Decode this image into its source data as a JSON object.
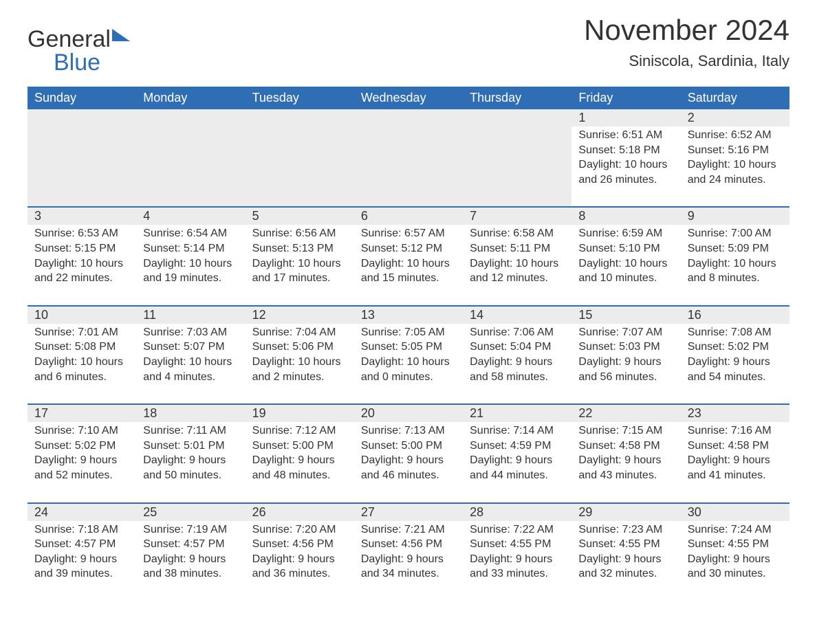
{
  "logo": {
    "general": "General",
    "blue": "Blue"
  },
  "title": "November 2024",
  "location": "Siniscola, Sardinia, Italy",
  "colors": {
    "header_bg": "#2f6eb5",
    "header_text": "#ffffff",
    "daynum_bg": "#ececec",
    "row_border": "#2f6eb5",
    "body_text": "#333333",
    "background": "#ffffff"
  },
  "typography": {
    "title_fontsize": 42,
    "location_fontsize": 22,
    "dayheader_fontsize": 18,
    "daynum_fontsize": 18,
    "detail_fontsize": 16
  },
  "layout": {
    "columns": 7,
    "week_rows": 5
  },
  "day_headers": [
    "Sunday",
    "Monday",
    "Tuesday",
    "Wednesday",
    "Thursday",
    "Friday",
    "Saturday"
  ],
  "labels": {
    "sunrise": "Sunrise:",
    "sunset": "Sunset:",
    "daylight": "Daylight:"
  },
  "weeks": [
    [
      null,
      null,
      null,
      null,
      null,
      {
        "n": "1",
        "sunrise": "6:51 AM",
        "sunset": "5:18 PM",
        "daylight": "10 hours and 26 minutes."
      },
      {
        "n": "2",
        "sunrise": "6:52 AM",
        "sunset": "5:16 PM",
        "daylight": "10 hours and 24 minutes."
      }
    ],
    [
      {
        "n": "3",
        "sunrise": "6:53 AM",
        "sunset": "5:15 PM",
        "daylight": "10 hours and 22 minutes."
      },
      {
        "n": "4",
        "sunrise": "6:54 AM",
        "sunset": "5:14 PM",
        "daylight": "10 hours and 19 minutes."
      },
      {
        "n": "5",
        "sunrise": "6:56 AM",
        "sunset": "5:13 PM",
        "daylight": "10 hours and 17 minutes."
      },
      {
        "n": "6",
        "sunrise": "6:57 AM",
        "sunset": "5:12 PM",
        "daylight": "10 hours and 15 minutes."
      },
      {
        "n": "7",
        "sunrise": "6:58 AM",
        "sunset": "5:11 PM",
        "daylight": "10 hours and 12 minutes."
      },
      {
        "n": "8",
        "sunrise": "6:59 AM",
        "sunset": "5:10 PM",
        "daylight": "10 hours and 10 minutes."
      },
      {
        "n": "9",
        "sunrise": "7:00 AM",
        "sunset": "5:09 PM",
        "daylight": "10 hours and 8 minutes."
      }
    ],
    [
      {
        "n": "10",
        "sunrise": "7:01 AM",
        "sunset": "5:08 PM",
        "daylight": "10 hours and 6 minutes."
      },
      {
        "n": "11",
        "sunrise": "7:03 AM",
        "sunset": "5:07 PM",
        "daylight": "10 hours and 4 minutes."
      },
      {
        "n": "12",
        "sunrise": "7:04 AM",
        "sunset": "5:06 PM",
        "daylight": "10 hours and 2 minutes."
      },
      {
        "n": "13",
        "sunrise": "7:05 AM",
        "sunset": "5:05 PM",
        "daylight": "10 hours and 0 minutes."
      },
      {
        "n": "14",
        "sunrise": "7:06 AM",
        "sunset": "5:04 PM",
        "daylight": "9 hours and 58 minutes."
      },
      {
        "n": "15",
        "sunrise": "7:07 AM",
        "sunset": "5:03 PM",
        "daylight": "9 hours and 56 minutes."
      },
      {
        "n": "16",
        "sunrise": "7:08 AM",
        "sunset": "5:02 PM",
        "daylight": "9 hours and 54 minutes."
      }
    ],
    [
      {
        "n": "17",
        "sunrise": "7:10 AM",
        "sunset": "5:02 PM",
        "daylight": "9 hours and 52 minutes."
      },
      {
        "n": "18",
        "sunrise": "7:11 AM",
        "sunset": "5:01 PM",
        "daylight": "9 hours and 50 minutes."
      },
      {
        "n": "19",
        "sunrise": "7:12 AM",
        "sunset": "5:00 PM",
        "daylight": "9 hours and 48 minutes."
      },
      {
        "n": "20",
        "sunrise": "7:13 AM",
        "sunset": "5:00 PM",
        "daylight": "9 hours and 46 minutes."
      },
      {
        "n": "21",
        "sunrise": "7:14 AM",
        "sunset": "4:59 PM",
        "daylight": "9 hours and 44 minutes."
      },
      {
        "n": "22",
        "sunrise": "7:15 AM",
        "sunset": "4:58 PM",
        "daylight": "9 hours and 43 minutes."
      },
      {
        "n": "23",
        "sunrise": "7:16 AM",
        "sunset": "4:58 PM",
        "daylight": "9 hours and 41 minutes."
      }
    ],
    [
      {
        "n": "24",
        "sunrise": "7:18 AM",
        "sunset": "4:57 PM",
        "daylight": "9 hours and 39 minutes."
      },
      {
        "n": "25",
        "sunrise": "7:19 AM",
        "sunset": "4:57 PM",
        "daylight": "9 hours and 38 minutes."
      },
      {
        "n": "26",
        "sunrise": "7:20 AM",
        "sunset": "4:56 PM",
        "daylight": "9 hours and 36 minutes."
      },
      {
        "n": "27",
        "sunrise": "7:21 AM",
        "sunset": "4:56 PM",
        "daylight": "9 hours and 34 minutes."
      },
      {
        "n": "28",
        "sunrise": "7:22 AM",
        "sunset": "4:55 PM",
        "daylight": "9 hours and 33 minutes."
      },
      {
        "n": "29",
        "sunrise": "7:23 AM",
        "sunset": "4:55 PM",
        "daylight": "9 hours and 32 minutes."
      },
      {
        "n": "30",
        "sunrise": "7:24 AM",
        "sunset": "4:55 PM",
        "daylight": "9 hours and 30 minutes."
      }
    ]
  ]
}
